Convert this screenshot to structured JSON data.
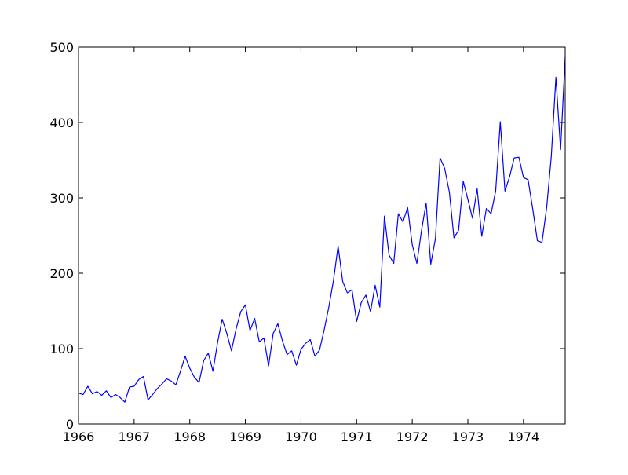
{
  "chart_data": {
    "type": "line",
    "title": "",
    "xlabel": "",
    "ylabel": "",
    "xlim": [
      1966,
      1974.75
    ],
    "ylim": [
      0,
      500
    ],
    "grid": false,
    "x_ticks": [
      1966,
      1967,
      1968,
      1969,
      1970,
      1971,
      1972,
      1973,
      1974
    ],
    "x_tick_labels": [
      "1966",
      "1967",
      "1968",
      "1969",
      "1970",
      "1971",
      "1972",
      "1973",
      "1974"
    ],
    "y_ticks": [
      0,
      100,
      200,
      300,
      400,
      500
    ],
    "y_tick_labels": [
      "0",
      "100",
      "200",
      "300",
      "400",
      "500"
    ],
    "series": [
      {
        "color": "#0000ff",
        "x": [
          1966.0,
          1966.083,
          1966.167,
          1966.25,
          1966.333,
          1966.417,
          1966.5,
          1966.583,
          1966.667,
          1966.75,
          1966.833,
          1966.917,
          1967.0,
          1967.083,
          1967.167,
          1967.25,
          1967.333,
          1967.417,
          1967.5,
          1967.583,
          1967.667,
          1967.75,
          1967.833,
          1967.917,
          1968.0,
          1968.083,
          1968.167,
          1968.25,
          1968.333,
          1968.417,
          1968.5,
          1968.583,
          1968.667,
          1968.75,
          1968.833,
          1968.917,
          1969.0,
          1969.083,
          1969.167,
          1969.25,
          1969.333,
          1969.417,
          1969.5,
          1969.583,
          1969.667,
          1969.75,
          1969.833,
          1969.917,
          1970.0,
          1970.083,
          1970.167,
          1970.25,
          1970.333,
          1970.417,
          1970.5,
          1970.583,
          1970.667,
          1970.75,
          1970.833,
          1970.917,
          1971.0,
          1971.083,
          1971.167,
          1971.25,
          1971.333,
          1971.417,
          1971.5,
          1971.583,
          1971.667,
          1971.75,
          1971.833,
          1971.917,
          1972.0,
          1972.083,
          1972.167,
          1972.25,
          1972.333,
          1972.417,
          1972.5,
          1972.583,
          1972.667,
          1972.75,
          1972.833,
          1972.917,
          1973.0,
          1973.083,
          1973.167,
          1973.25,
          1973.333,
          1973.417,
          1973.5,
          1973.583,
          1973.667,
          1973.75,
          1973.833,
          1973.917,
          1974.0,
          1974.083,
          1974.167,
          1974.25,
          1974.333,
          1974.417,
          1974.5,
          1974.583,
          1974.667,
          1974.75
        ],
        "y": [
          41,
          39,
          50,
          40,
          43,
          38,
          44,
          35,
          39,
          35,
          29,
          49,
          50,
          59,
          63,
          32,
          39,
          47,
          53,
          60,
          57,
          52,
          70,
          90,
          74,
          62,
          55,
          84,
          94,
          70,
          108,
          139,
          120,
          97,
          126,
          149,
          158,
          124,
          140,
          109,
          114,
          77,
          120,
          133,
          110,
          92,
          97,
          78,
          99,
          107,
          112,
          90,
          98,
          125,
          155,
          190,
          236,
          189,
          174,
          178,
          136,
          161,
          171,
          149,
          184,
          155,
          276,
          224,
          213,
          279,
          268,
          287,
          238,
          213,
          257,
          293,
          212,
          246,
          353,
          339,
          308,
          247,
          257,
          322,
          298,
          273,
          312,
          249,
          286,
          279,
          309,
          401,
          309,
          328,
          353,
          354,
          327,
          324,
          285,
          243,
          241,
          287,
          355,
          460,
          364,
          487
        ]
      }
    ]
  }
}
